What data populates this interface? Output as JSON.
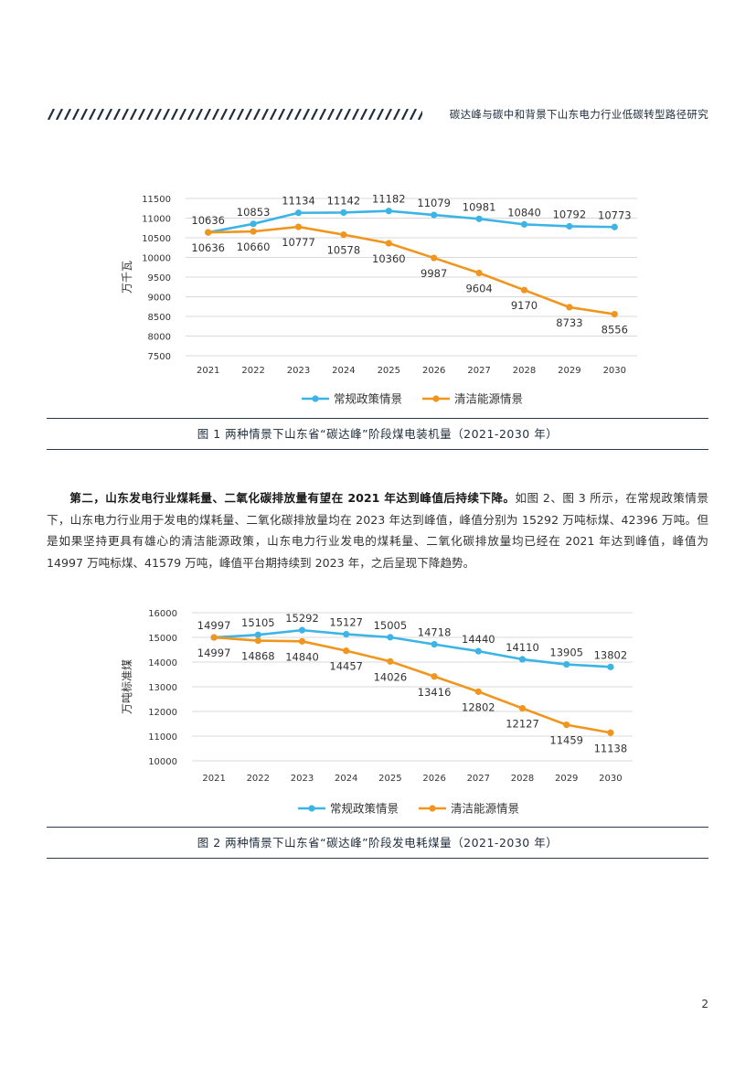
{
  "header": {
    "title": "碳达峰与碳中和背景下山东电力行业低碳转型路径研究"
  },
  "figure1": {
    "caption": "图 1 两种情景下山东省“碳达峰”阶段煤电装机量（2021-2030 年）"
  },
  "figure2": {
    "caption": "图 2 两种情景下山东省“碳达峰”阶段发电耗煤量（2021-2030 年）"
  },
  "paragraph": {
    "lead": "第二，山东发电行业煤耗量、二氧化碳排放量有望在 2021 年达到峰值后持续下降。",
    "rest": "如图 2、图 3 所示，在常规政策情景下，山东电力行业用于发电的煤耗量、二氧化碳排放量均在 2023 年达到峰值，峰值分别为 15292 万吨标煤、42396 万吨。但是如果坚持更具有雄心的清洁能源政策，山东电力行业发电的煤耗量、二氧化碳排放量均已经在 2021 年达到峰值，峰值为 14997 万吨标煤、41579 万吨，峰值平台期持续到 2023 年，之后呈现下降趋势。"
  },
  "page_number": "2",
  "colors": {
    "policy": "#3cb4e5",
    "clean": "#f0961e",
    "grid": "#d9d9d9"
  },
  "chart_data": [
    {
      "type": "line",
      "ylabel": "万千瓦",
      "x": [
        "2021",
        "2022",
        "2023",
        "2024",
        "2025",
        "2026",
        "2027",
        "2028",
        "2029",
        "2030"
      ],
      "yticks": [
        7500,
        8000,
        8500,
        9000,
        9500,
        10000,
        10500,
        11000,
        11500
      ],
      "ylim": [
        7500,
        11500
      ],
      "grid": true,
      "legend_position": "bottom",
      "series": [
        {
          "name": "常规政策情景",
          "color": "#3cb4e5",
          "values": [
            10636,
            10853,
            11134,
            11142,
            11182,
            11079,
            10981,
            10840,
            10792,
            10773
          ]
        },
        {
          "name": "清洁能源情景",
          "color": "#f0961e",
          "values": [
            10636,
            10660,
            10777,
            10578,
            10360,
            9987,
            9604,
            9170,
            8733,
            8556
          ]
        }
      ]
    },
    {
      "type": "line",
      "ylabel": "万吨标准煤",
      "x": [
        "2021",
        "2022",
        "2023",
        "2024",
        "2025",
        "2026",
        "2027",
        "2028",
        "2029",
        "2030"
      ],
      "yticks": [
        10000,
        11000,
        12000,
        13000,
        14000,
        15000,
        16000
      ],
      "ylim": [
        10000,
        16000
      ],
      "grid": true,
      "legend_position": "bottom",
      "series": [
        {
          "name": "常规政策情景",
          "color": "#3cb4e5",
          "values": [
            14997,
            15105,
            15292,
            15127,
            15005,
            14718,
            14440,
            14110,
            13905,
            13802
          ]
        },
        {
          "name": "清洁能源情景",
          "color": "#f0961e",
          "values": [
            14997,
            14868,
            14840,
            14457,
            14026,
            13416,
            12802,
            12127,
            11459,
            11138
          ]
        }
      ]
    }
  ]
}
